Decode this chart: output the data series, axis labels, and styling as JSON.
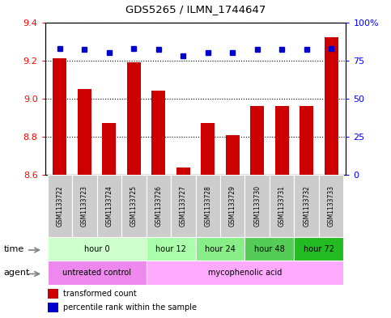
{
  "title": "GDS5265 / ILMN_1744647",
  "samples": [
    "GSM1133722",
    "GSM1133723",
    "GSM1133724",
    "GSM1133725",
    "GSM1133726",
    "GSM1133727",
    "GSM1133728",
    "GSM1133729",
    "GSM1133730",
    "GSM1133731",
    "GSM1133732",
    "GSM1133733"
  ],
  "transformed_counts": [
    9.21,
    9.05,
    8.87,
    9.19,
    9.04,
    8.64,
    8.87,
    8.81,
    8.96,
    8.96,
    8.96,
    9.32
  ],
  "percentile_ranks": [
    83,
    82,
    80,
    83,
    82,
    78,
    80,
    80,
    82,
    82,
    82,
    83
  ],
  "ylim_left": [
    8.6,
    9.4
  ],
  "ylim_right": [
    0,
    100
  ],
  "yticks_left": [
    8.6,
    8.8,
    9.0,
    9.2,
    9.4
  ],
  "yticks_right": [
    0,
    25,
    50,
    75,
    100
  ],
  "time_groups": [
    {
      "label": "hour 0",
      "start": 0,
      "end": 3,
      "color": "#ccffcc"
    },
    {
      "label": "hour 12",
      "start": 4,
      "end": 5,
      "color": "#aaffaa"
    },
    {
      "label": "hour 24",
      "start": 6,
      "end": 7,
      "color": "#88ee88"
    },
    {
      "label": "hour 48",
      "start": 8,
      "end": 9,
      "color": "#55cc55"
    },
    {
      "label": "hour 72",
      "start": 10,
      "end": 11,
      "color": "#22bb22"
    }
  ],
  "bar_color": "#cc0000",
  "dot_color": "#0000cc",
  "sample_bg": "#cccccc",
  "untreated_color": "#ee88ee",
  "myco_color": "#ffaaff",
  "time_label": "time",
  "agent_label": "agent",
  "legend_red_label": "transformed count",
  "legend_blue_label": "percentile rank within the sample"
}
